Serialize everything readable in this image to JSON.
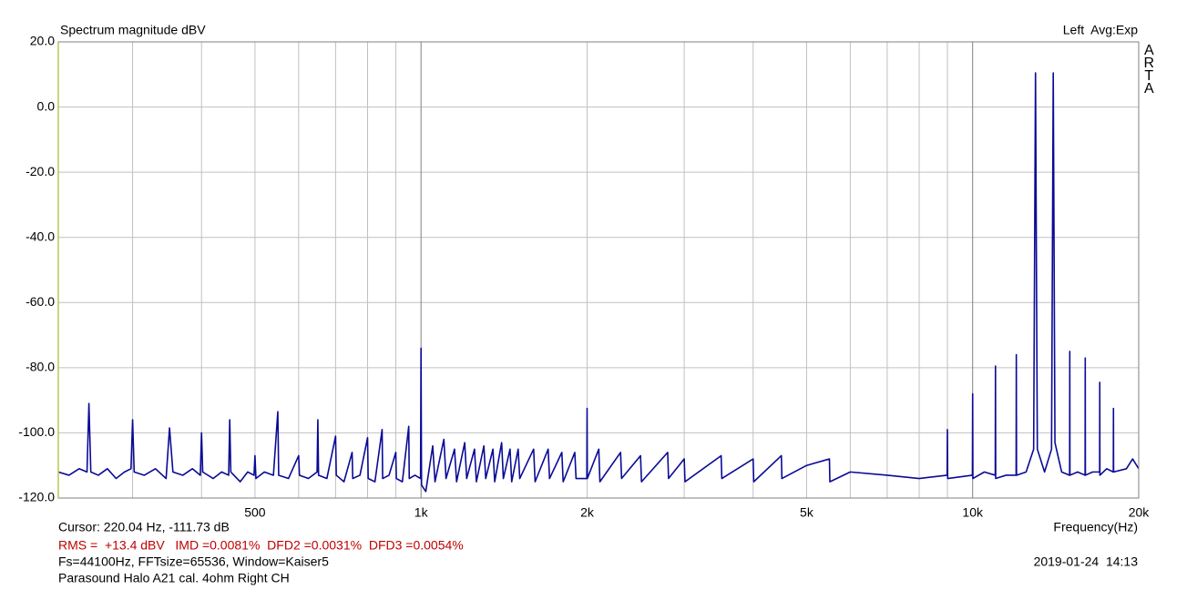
{
  "chart_data": {
    "type": "line",
    "title": "Spectrum magnitude dBV",
    "channel_info": "Left  Avg:Exp",
    "watermark": "ARTA",
    "x_label": "Frequency(Hz)",
    "cursor_info": "Cursor: 220.04 Hz, -111.73 dB",
    "measurements": "RMS =  +13.4 dBV   IMD =0.0081%  DFD2 =0.0031%  DFD3 =0.0054%",
    "settings_info": "Fs=44100Hz, FFTsize=65536, Window=Kaiser5",
    "device_info": "Parasound Halo A21 cal. 4ohm Right CH",
    "timestamp": "2019-01-24  14:13",
    "xscale": "log",
    "grid": true,
    "color": "#0a0a96",
    "xlim": [
      220,
      20000
    ],
    "ylim": [
      -120,
      20
    ],
    "xticks": [
      500,
      {
        "value": 1000,
        "label": "1k"
      },
      {
        "value": 2000,
        "label": "2k"
      },
      {
        "value": 5000,
        "label": "5k"
      },
      {
        "value": 10000,
        "label": "10k"
      },
      {
        "value": 20000,
        "label": "20k"
      }
    ],
    "xminorticks": [
      300,
      400,
      600,
      700,
      800,
      900,
      3000,
      4000,
      6000,
      7000,
      8000,
      9000
    ],
    "yticks": [
      {
        "value": 20,
        "label": "20.0"
      },
      {
        "value": 0,
        "label": "0.0"
      },
      {
        "value": -20,
        "label": "-20.0"
      },
      {
        "value": -40,
        "label": "-40.0"
      },
      {
        "value": -60,
        "label": "-60.0"
      },
      {
        "value": -80,
        "label": "-80.0"
      },
      {
        "value": -100,
        "label": "-100.0"
      },
      {
        "value": -120,
        "label": "-120.0"
      }
    ],
    "x": [
      220,
      230,
      240,
      248,
      250,
      252,
      260,
      270,
      280,
      290,
      298,
      300,
      302,
      315,
      330,
      345,
      350,
      355,
      370,
      385,
      398,
      400,
      402,
      420,
      435,
      448,
      450,
      452,
      470,
      485,
      498,
      500,
      502,
      520,
      540,
      550,
      552,
      575,
      600,
      602,
      625,
      648,
      650,
      652,
      675,
      700,
      702,
      725,
      750,
      752,
      775,
      800,
      802,
      825,
      850,
      852,
      875,
      900,
      902,
      925,
      950,
      952,
      975,
      998,
      1000,
      1002,
      1020,
      1050,
      1060,
      1100,
      1110,
      1150,
      1160,
      1200,
      1210,
      1250,
      1260,
      1300,
      1310,
      1350,
      1360,
      1400,
      1410,
      1450,
      1460,
      1500,
      1510,
      1600,
      1610,
      1700,
      1710,
      1800,
      1810,
      1900,
      1910,
      1998,
      2000,
      2002,
      2100,
      2110,
      2300,
      2310,
      2500,
      2510,
      2800,
      2810,
      3000,
      3010,
      3500,
      3510,
      4000,
      4010,
      4500,
      4510,
      5000,
      5500,
      5510,
      6000,
      7000,
      8000,
      8990,
      9000,
      9010,
      9990,
      10000,
      10010,
      10500,
      10990,
      11000,
      11010,
      11500,
      11990,
      12000,
      12010,
      12500,
      12900,
      13000,
      13100,
      13500,
      13900,
      14000,
      14100,
      14500,
      14990,
      15000,
      15010,
      15500,
      15990,
      16000,
      16010,
      16500,
      16990,
      17000,
      17010,
      17500,
      17990,
      18000,
      18010,
      19000,
      19500,
      20000
    ],
    "values": [
      -112,
      -113,
      -111,
      -112,
      -91,
      -112,
      -113,
      -111,
      -114,
      -112,
      -111,
      -96,
      -112,
      -113,
      -111,
      -114,
      -98.5,
      -112,
      -113,
      -111,
      -113,
      -100,
      -112,
      -114,
      -112,
      -113,
      -96,
      -112,
      -115,
      -112,
      -113,
      -107,
      -114,
      -112,
      -113,
      -93.5,
      -113,
      -114,
      -107,
      -113,
      -114,
      -112,
      -96,
      -113,
      -114,
      -101,
      -113,
      -115,
      -106,
      -114,
      -113,
      -101.5,
      -114,
      -115,
      -99,
      -114,
      -113,
      -106,
      -114,
      -115,
      -98,
      -114,
      -113,
      -114,
      -74,
      -116,
      -118,
      -104,
      -115,
      -102,
      -114,
      -105,
      -115,
      -103,
      -114,
      -105,
      -115,
      -104,
      -114,
      -105,
      -115,
      -103,
      -114,
      -105,
      -115,
      -105,
      -114,
      -105,
      -115,
      -105,
      -114,
      -106,
      -115,
      -106,
      -114,
      -114,
      -92.5,
      -114,
      -105,
      -115,
      -106,
      -114,
      -107,
      -115,
      -106,
      -114,
      -108,
      -115,
      -107,
      -114,
      -108,
      -115,
      -107,
      -114,
      -110,
      -108,
      -115,
      -112,
      -113,
      -114,
      -113,
      -99,
      -114,
      -113,
      -88,
      -114,
      -112,
      -113,
      -79.5,
      -114,
      -113,
      -113,
      -76,
      -113,
      -112,
      -105,
      10.5,
      -105,
      -112,
      -105,
      10.5,
      -103,
      -112,
      -113,
      -75,
      -113,
      -112,
      -113,
      -77,
      -113,
      -112,
      -112,
      -84.5,
      -113,
      -111,
      -112,
      -92.5,
      -112,
      -111,
      -108,
      -111
    ]
  }
}
